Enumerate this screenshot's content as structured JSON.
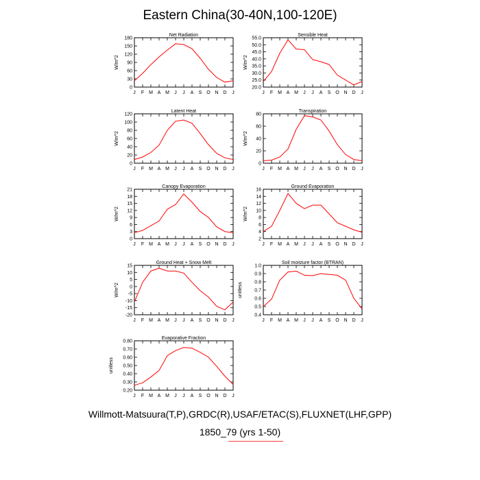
{
  "title": "Eastern China(30-40N,100-120E)",
  "footer": {
    "sources": "Willmott-Matsuura(T,P),GRDC(R),USAF/ETAC(S),FLUXNET(LHF,GPP)",
    "case": "1850_79 (yrs 1-50)"
  },
  "line_color": "#ff0000",
  "chart_data": [
    {
      "type": "line",
      "title": "Net Radiation",
      "ylabel": "W/m^2",
      "xlabel": "",
      "categories": [
        "J",
        "F",
        "M",
        "A",
        "M",
        "J",
        "J",
        "A",
        "S",
        "O",
        "N",
        "D",
        "J"
      ],
      "ylim": [
        0,
        180
      ],
      "yticks": [
        0,
        30,
        60,
        90,
        120,
        150,
        180
      ],
      "yticklabels": [
        "0",
        "30",
        "60",
        "90",
        "120",
        "150",
        "180"
      ],
      "values": [
        23,
        50,
        82,
        110,
        135,
        158,
        155,
        140,
        105,
        65,
        35,
        18,
        23
      ]
    },
    {
      "type": "line",
      "title": "Sensible Heat",
      "ylabel": "W/m^2",
      "xlabel": "",
      "categories": [
        "J",
        "F",
        "M",
        "A",
        "M",
        "J",
        "J",
        "A",
        "S",
        "O",
        "N",
        "D",
        "J"
      ],
      "ylim": [
        20,
        55
      ],
      "yticks": [
        20,
        25,
        30,
        35,
        40,
        45,
        50,
        55
      ],
      "yticklabels": [
        "20.0",
        "25.0",
        "30.0",
        "35.0",
        "40.0",
        "45.0",
        "50.0",
        "55.0"
      ],
      "values": [
        24,
        31,
        44,
        53.5,
        47,
        46.5,
        39.5,
        38,
        36,
        28.5,
        25,
        21.5,
        24
      ]
    },
    {
      "type": "line",
      "title": "Latent Heat",
      "ylabel": "W/m^2",
      "xlabel": "",
      "categories": [
        "J",
        "F",
        "M",
        "A",
        "M",
        "J",
        "J",
        "A",
        "S",
        "O",
        "N",
        "D",
        "J"
      ],
      "ylim": [
        0,
        120
      ],
      "yticks": [
        0,
        20,
        40,
        60,
        80,
        100,
        120
      ],
      "yticklabels": [
        "0",
        "20",
        "40",
        "60",
        "80",
        "100",
        "120"
      ],
      "values": [
        9,
        15,
        26,
        44,
        80,
        102,
        105,
        97,
        72,
        45,
        24,
        13,
        9
      ]
    },
    {
      "type": "line",
      "title": "Transpiration",
      "ylabel": "W/m^2",
      "xlabel": "",
      "categories": [
        "J",
        "F",
        "M",
        "A",
        "M",
        "J",
        "J",
        "A",
        "S",
        "O",
        "N",
        "D",
        "J"
      ],
      "ylim": [
        0,
        80
      ],
      "yticks": [
        0,
        20,
        40,
        60,
        80
      ],
      "yticklabels": [
        "0",
        "20",
        "40",
        "60",
        "80"
      ],
      "values": [
        4,
        5,
        10,
        23,
        55,
        77,
        75,
        70,
        52,
        30,
        14,
        6,
        4
      ]
    },
    {
      "type": "line",
      "title": "Canopy Evaporation",
      "ylabel": "W/m^2",
      "xlabel": "",
      "categories": [
        "J",
        "F",
        "M",
        "A",
        "M",
        "J",
        "J",
        "A",
        "S",
        "O",
        "N",
        "D",
        "J"
      ],
      "ylim": [
        0,
        21
      ],
      "yticks": [
        0,
        3,
        6,
        9,
        12,
        15,
        18,
        21
      ],
      "yticklabels": [
        "0",
        "3",
        "6",
        "9",
        "12",
        "15",
        "18",
        "21"
      ],
      "values": [
        2.5,
        3.5,
        5.5,
        7.5,
        12.5,
        14.5,
        19,
        15.5,
        11.5,
        9,
        5,
        3,
        2.5
      ]
    },
    {
      "type": "line",
      "title": "Ground Evaporation",
      "ylabel": "W/m^2",
      "xlabel": "",
      "categories": [
        "J",
        "F",
        "M",
        "A",
        "M",
        "J",
        "J",
        "A",
        "S",
        "O",
        "N",
        "D",
        "J"
      ],
      "ylim": [
        2,
        16
      ],
      "yticks": [
        2,
        4,
        6,
        8,
        10,
        12,
        14,
        16
      ],
      "yticklabels": [
        "2",
        "4",
        "6",
        "8",
        "10",
        "12",
        "14",
        "16"
      ],
      "values": [
        4,
        5.5,
        10,
        14.8,
        12,
        10.5,
        11.5,
        11.5,
        9,
        6.5,
        5.5,
        4.5,
        3.8
      ]
    },
    {
      "type": "line",
      "title": "Ground Heat + Snow Melt",
      "ylabel": "W/m^2",
      "xlabel": "",
      "categories": [
        "J",
        "F",
        "M",
        "A",
        "M",
        "J",
        "J",
        "A",
        "S",
        "O",
        "N",
        "D",
        "J"
      ],
      "ylim": [
        -20,
        15
      ],
      "yticks": [
        -20,
        -15,
        -10,
        -5,
        0,
        5,
        10,
        15
      ],
      "yticklabels": [
        "-20",
        "-15",
        "-10",
        "-5",
        "0",
        "5",
        "10",
        "15"
      ],
      "values": [
        -11,
        3,
        11,
        13,
        11,
        11,
        9.5,
        3,
        -3,
        -7.5,
        -14,
        -16.5,
        -11
      ]
    },
    {
      "type": "line",
      "title": "Soil moisture factor (BTRAN)",
      "ylabel": "unitless",
      "xlabel": "",
      "categories": [
        "J",
        "F",
        "M",
        "A",
        "M",
        "J",
        "J",
        "A",
        "S",
        "O",
        "N",
        "D",
        "J"
      ],
      "ylim": [
        0.4,
        1.0
      ],
      "yticks": [
        0.4,
        0.5,
        0.6,
        0.7,
        0.8,
        0.9,
        1.0
      ],
      "yticklabels": [
        "0.4",
        "0.5",
        "0.6",
        "0.7",
        "0.8",
        "0.9",
        "1.0"
      ],
      "values": [
        0.5,
        0.59,
        0.82,
        0.92,
        0.93,
        0.88,
        0.875,
        0.9,
        0.89,
        0.88,
        0.82,
        0.6,
        0.47
      ]
    },
    {
      "type": "line",
      "title": "Evaporative Fraction",
      "ylabel": "unitless",
      "xlabel": "",
      "categories": [
        "J",
        "F",
        "M",
        "A",
        "M",
        "J",
        "J",
        "A",
        "S",
        "O",
        "N",
        "D",
        "J"
      ],
      "ylim": [
        0.2,
        0.8
      ],
      "yticks": [
        0.2,
        0.3,
        0.4,
        0.5,
        0.6,
        0.7,
        0.8
      ],
      "yticklabels": [
        "0.20",
        "0.30",
        "0.40",
        "0.50",
        "0.60",
        "0.70",
        "0.80"
      ],
      "values": [
        0.26,
        0.29,
        0.36,
        0.44,
        0.62,
        0.68,
        0.72,
        0.71,
        0.66,
        0.6,
        0.49,
        0.37,
        0.27
      ]
    }
  ]
}
